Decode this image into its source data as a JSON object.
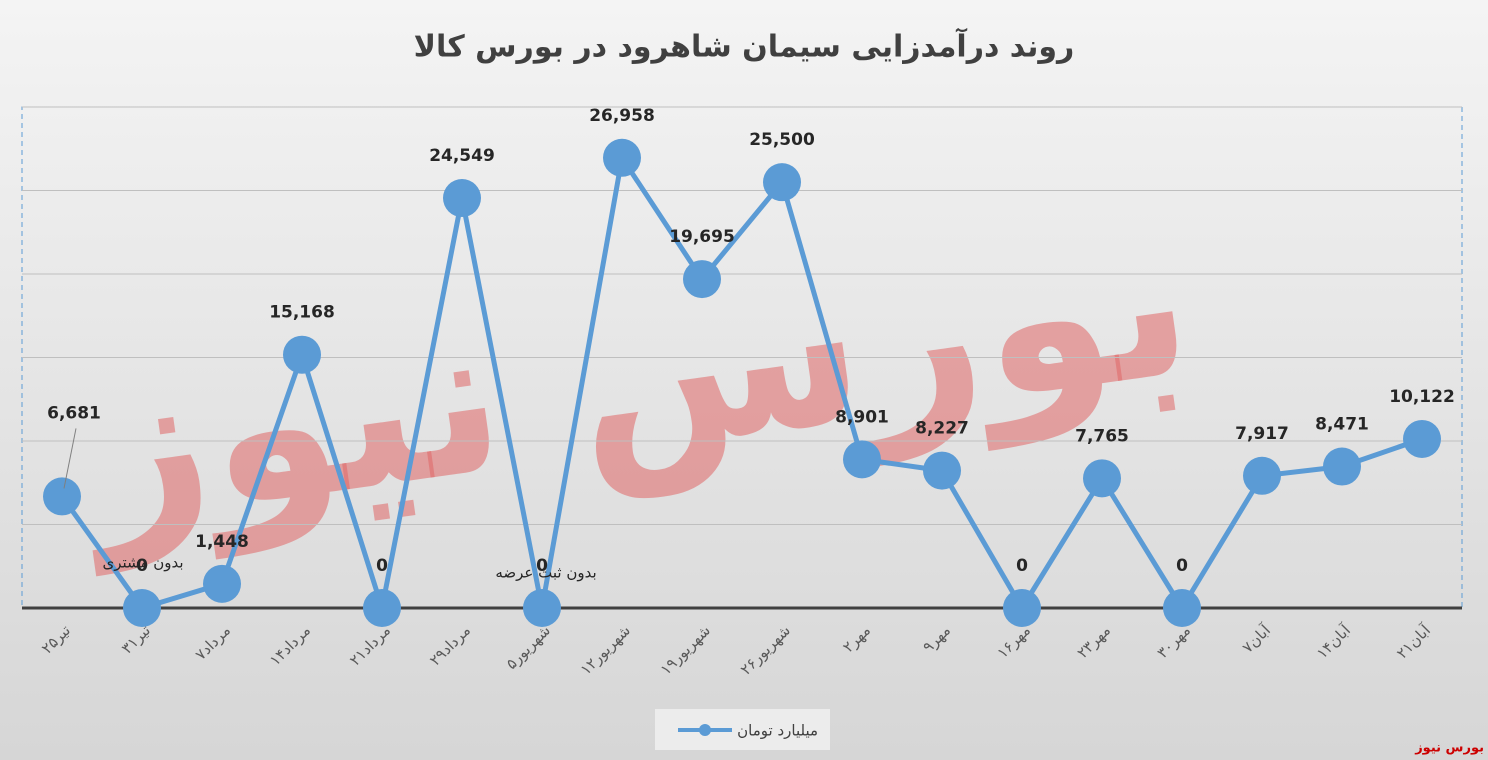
{
  "chart_data": {
    "type": "line",
    "title": "روند درآمدزایی سیمان شاهرود در بورس کالا",
    "categories": [
      "۲۵تیر",
      "۳۱تیر",
      "۷مرداد",
      "۱۴مرداد",
      "۲۱مرداد",
      "۲۹مرداد",
      "۵شهریور",
      "۱۲شهریور",
      "۱۹شهریور",
      "۲۶شهریور",
      "۲مهر",
      "۹مهر",
      "۱۶مهر",
      "۲۳مهر",
      "۳۰مهر",
      "۷آبان",
      "۱۴آبان",
      "۲۱آبان"
    ],
    "series": [
      {
        "name": "میلیارد تومان",
        "color": "#5b9bd5",
        "values": [
          6681,
          0,
          1448,
          15168,
          0,
          24549,
          0,
          26958,
          19695,
          25500,
          8901,
          8227,
          0,
          7765,
          0,
          7917,
          8471,
          10122
        ],
        "value_labels": [
          "6,681",
          "0",
          "1,448",
          "15,168",
          "0",
          "24,549",
          "0",
          "26,958",
          "19,695",
          "25,500",
          "8,901",
          "8,227",
          "0",
          "7,765",
          "0",
          "7,917",
          "8,471",
          "10,122"
        ]
      }
    ],
    "annotations": [
      "بدون مشتری",
      "بدون ثبت عرضه"
    ],
    "ylim": [
      0,
      30000
    ],
    "yticks": [
      0,
      5000,
      10000,
      15000,
      20000,
      25000,
      30000
    ],
    "grid": true,
    "legend": "bottom",
    "watermark": "بورس نیوز",
    "source": "بورس نیوز"
  }
}
